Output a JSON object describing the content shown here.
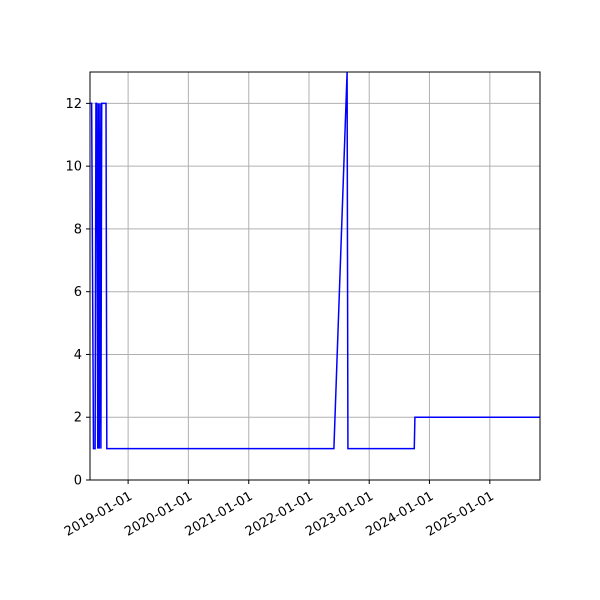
{
  "chart_data": {
    "type": "line",
    "title": "",
    "xlabel": "",
    "ylabel": "",
    "x_is_date": true,
    "xlim": [
      "2018-05-15",
      "2025-11-01"
    ],
    "ylim": [
      0,
      13
    ],
    "grid": true,
    "xticks": [
      "2019-01-01",
      "2020-01-01",
      "2021-01-01",
      "2022-01-01",
      "2023-01-01",
      "2024-01-01",
      "2025-01-01"
    ],
    "yticks": [
      0,
      2,
      4,
      6,
      8,
      10,
      12
    ],
    "series": [
      {
        "color": "#0000ff",
        "x": [
          "2018-05-15",
          "2018-05-20",
          "2018-05-25",
          "2018-06-05",
          "2018-06-15",
          "2018-06-20",
          "2018-06-25",
          "2018-07-01",
          "2018-07-05",
          "2018-07-10",
          "2018-07-15",
          "2018-07-20",
          "2018-07-25",
          "2018-08-01",
          "2018-08-10",
          "2018-08-20",
          "2018-08-25",
          "2018-09-01",
          "2022-06-01",
          "2022-08-20",
          "2022-08-25",
          "2022-09-01",
          "2023-10-01",
          "2023-10-05",
          "2025-11-01"
        ],
        "values": [
          12,
          12,
          12,
          1,
          1,
          12,
          12,
          1,
          12,
          1,
          12,
          1,
          12,
          12,
          12,
          12,
          1,
          1,
          1,
          13,
          1,
          1,
          1,
          2,
          2
        ]
      }
    ],
    "colors": {
      "line": "#0000ff",
      "grid": "#b0b0b0",
      "axes": "#000000"
    }
  }
}
